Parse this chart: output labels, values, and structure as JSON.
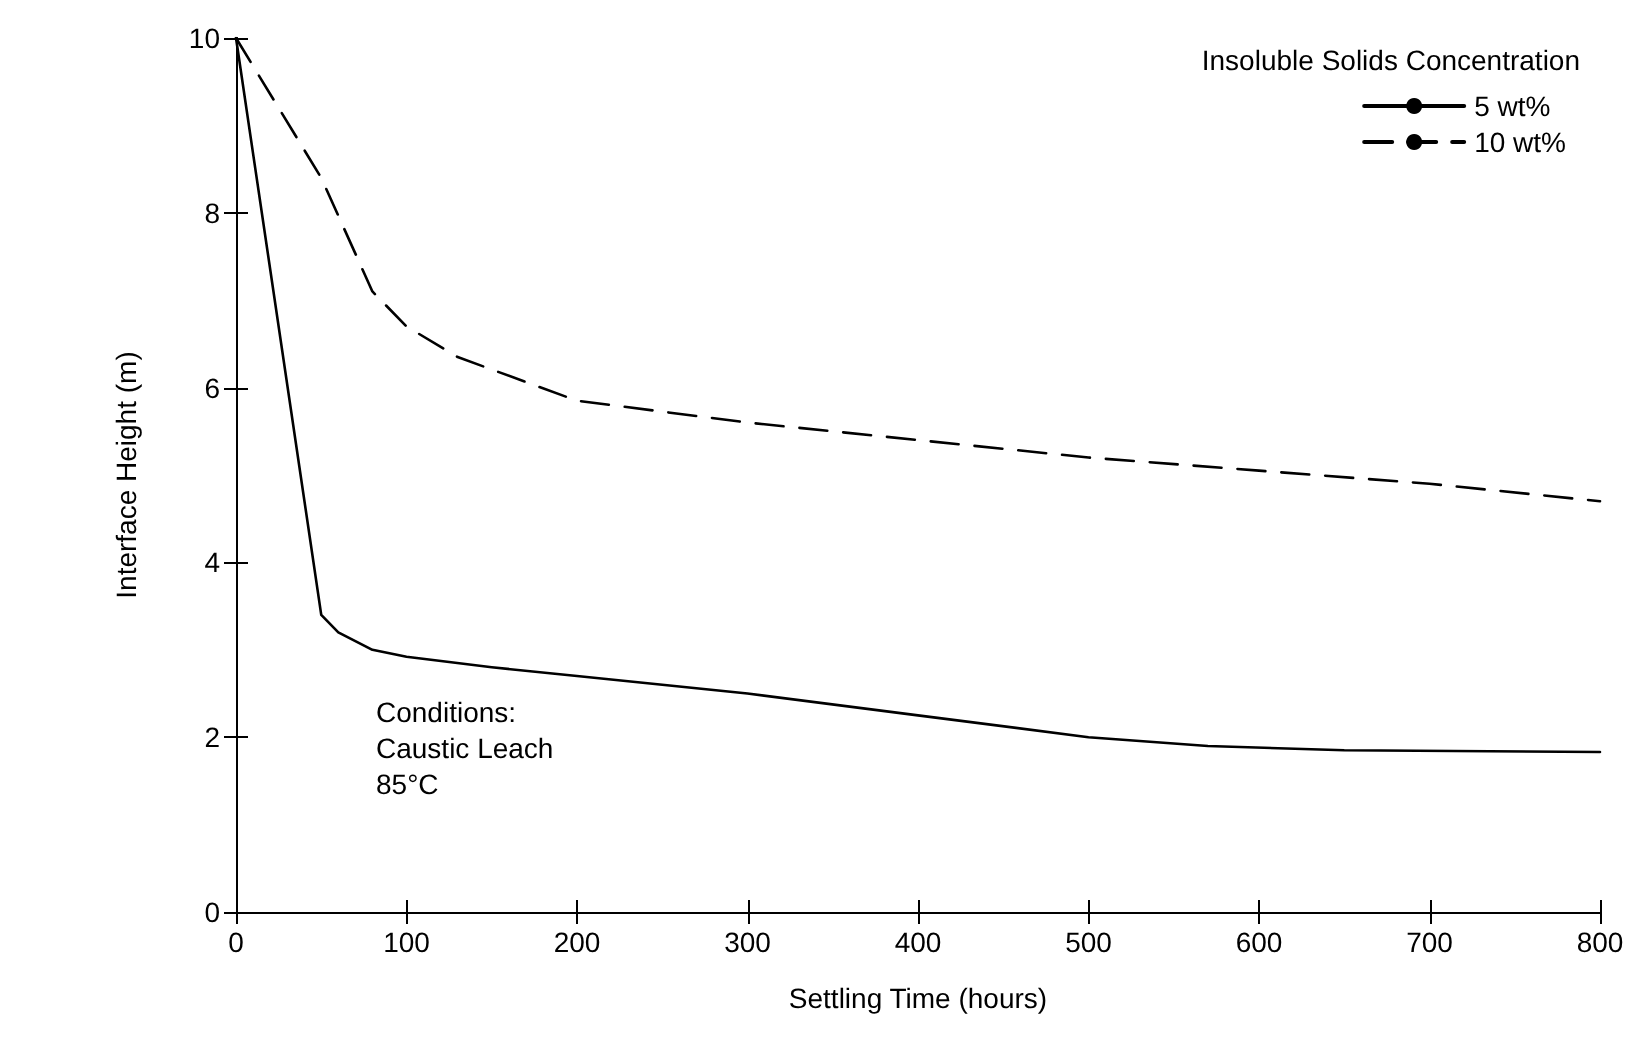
{
  "chart_data": {
    "type": "line",
    "xlabel": "Settling Time (hours)",
    "ylabel": "Interface Height (m)",
    "legend_title": "Insoluble Solids Concentration",
    "legend": "top right",
    "marker": "none",
    "grid": false,
    "xlim": [
      0,
      800
    ],
    "xticks": [
      0,
      100,
      200,
      300,
      400,
      500,
      600,
      700,
      800
    ],
    "ylim": [
      0,
      10
    ],
    "yticks": [
      0,
      2,
      4,
      6,
      8,
      10
    ],
    "annotations": [
      "Conditions:\nCaustic Leach\n85°C"
    ],
    "series": [
      {
        "name": "5 wt%",
        "color": "#000000",
        "line_style": "solid",
        "x": [
          0,
          50,
          60,
          80,
          100,
          150,
          200,
          300,
          400,
          500,
          570,
          650,
          800
        ],
        "values": [
          10,
          3.4,
          3.2,
          3.0,
          2.92,
          2.8,
          2.7,
          2.5,
          2.25,
          2.0,
          1.9,
          1.85,
          1.83
        ]
      },
      {
        "name": "10 wt%",
        "color": "#000000",
        "line_style": "dashed",
        "x": [
          0,
          50,
          80,
          100,
          130,
          200,
          300,
          400,
          500,
          600,
          700,
          800
        ],
        "values": [
          10,
          8.4,
          7.1,
          6.7,
          6.35,
          5.85,
          5.6,
          5.4,
          5.2,
          5.05,
          4.9,
          4.7
        ]
      }
    ]
  }
}
